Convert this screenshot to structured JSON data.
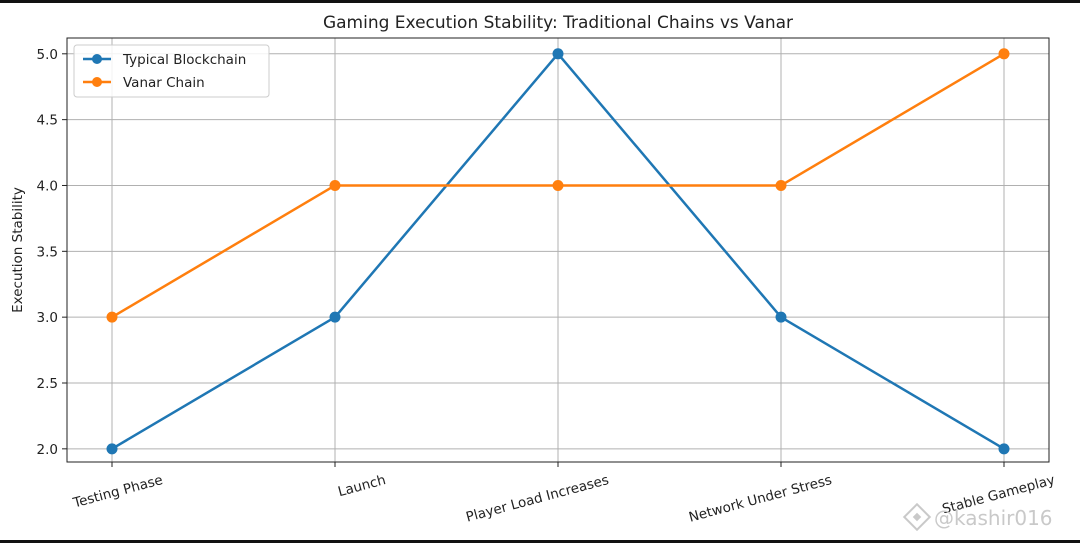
{
  "chart_data": {
    "type": "line",
    "title": "Gaming Execution Stability: Traditional Chains vs Vanar",
    "xlabel": "",
    "ylabel": "Execution Stability",
    "categories": [
      "Testing Phase",
      "Launch",
      "Player Load Increases",
      "Network Under Stress",
      "Stable Gameplay"
    ],
    "ylim": [
      1.9,
      5.12
    ],
    "yticks": [
      2.0,
      2.5,
      3.0,
      3.5,
      4.0,
      4.5,
      5.0
    ],
    "ytick_labels": [
      "2.0",
      "2.5",
      "3.0",
      "3.5",
      "4.0",
      "4.5",
      "5.0"
    ],
    "grid": true,
    "legend_position": "top-left",
    "series": [
      {
        "name": "Typical Blockchain",
        "color": "#1f77b4",
        "marker": "circle",
        "values": [
          2,
          3,
          5,
          3,
          2
        ]
      },
      {
        "name": "Vanar Chain",
        "color": "#ff7f0e",
        "marker": "circle",
        "values": [
          3,
          4,
          4,
          4,
          5
        ]
      }
    ]
  },
  "watermark": {
    "text": "@kashir016",
    "icon": "binance-logo-icon"
  }
}
